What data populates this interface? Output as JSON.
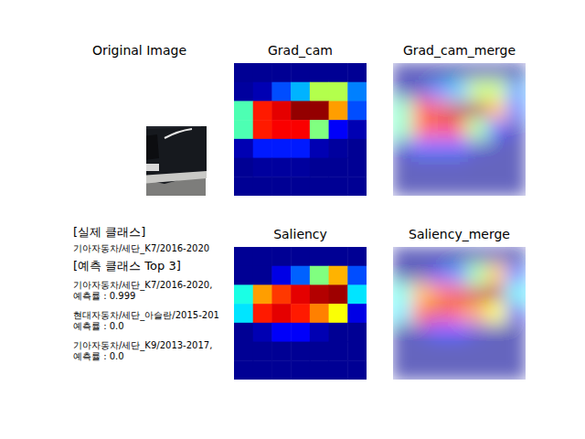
{
  "chart_data": [
    {
      "type": "image",
      "title": "Original Image"
    },
    {
      "type": "heatmap",
      "title": "Grad_cam",
      "merge_title": "Grad_cam_merge",
      "tick_labels": false,
      "cell_range": [
        0,
        1
      ],
      "cells": [
        [
          0.02,
          0.02,
          0.02,
          0.02,
          0.02,
          0.02,
          0.02
        ],
        [
          0.03,
          0.05,
          0.2,
          0.3,
          0.55,
          0.55,
          0.25
        ],
        [
          0.45,
          0.85,
          0.9,
          0.98,
          0.98,
          0.72,
          0.2
        ],
        [
          0.45,
          0.85,
          0.88,
          0.88,
          0.5,
          0.12,
          0.05
        ],
        [
          0.05,
          0.15,
          0.15,
          0.15,
          0.05,
          0.03,
          0.02
        ],
        [
          0.02,
          0.03,
          0.03,
          0.03,
          0.02,
          0.02,
          0.02
        ],
        [
          0.02,
          0.02,
          0.02,
          0.02,
          0.02,
          0.02,
          0.02
        ]
      ]
    },
    {
      "type": "heatmap",
      "title": "Saliency",
      "merge_title": "Saliency_merge",
      "tick_labels": false,
      "cell_range": [
        0,
        1
      ],
      "cells": [
        [
          0.02,
          0.02,
          0.02,
          0.02,
          0.02,
          0.02,
          0.02
        ],
        [
          0.02,
          0.02,
          0.1,
          0.22,
          0.5,
          0.7,
          0.2
        ],
        [
          0.4,
          0.72,
          0.82,
          0.9,
          0.95,
          0.97,
          0.35
        ],
        [
          0.35,
          0.85,
          0.9,
          0.85,
          0.75,
          0.62,
          0.1
        ],
        [
          0.02,
          0.05,
          0.12,
          0.12,
          0.05,
          0.02,
          0.02
        ],
        [
          0.02,
          0.02,
          0.02,
          0.02,
          0.02,
          0.02,
          0.02
        ],
        [
          0.02,
          0.02,
          0.02,
          0.02,
          0.02,
          0.02,
          0.02
        ]
      ]
    }
  ],
  "caption": {
    "actual_heading": "[실제 클래스]",
    "actual": "기아자동차/세단_K7/2016-2020",
    "top_heading": "[예측 클래스 Top 3]",
    "top": [
      {
        "class": "기아자동차/세단_K7/2016-2020,",
        "rate": "예측률 : 0.999"
      },
      {
        "class": "현대자동차/세단_아슬란/2015-201",
        "rate": "예측률 : 0.0"
      },
      {
        "class": "기아자동차/세단_K9/2013-2017,",
        "rate": "예측률 : 0.0"
      }
    ]
  }
}
